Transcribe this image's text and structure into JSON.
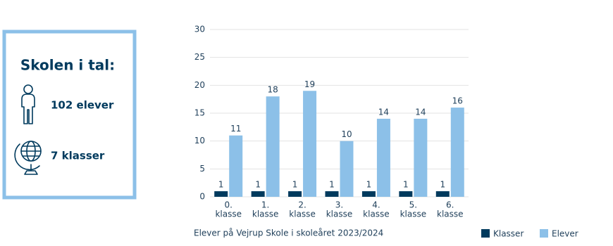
{
  "info_box": {
    "title": "Skolen i tal:",
    "items": [
      "102 elever",
      "7 klasser"
    ]
  },
  "chart_data": {
    "type": "bar",
    "caption": "Elever på Vejrup Skole i skoleåret 2023/2024",
    "categories": [
      [
        "0.",
        "klasse"
      ],
      [
        "1.",
        "klasse"
      ],
      [
        "2.",
        "klasse"
      ],
      [
        "3.",
        "klasse"
      ],
      [
        "4.",
        "klasse"
      ],
      [
        "5.",
        "klasse"
      ],
      [
        "6.",
        "klasse"
      ]
    ],
    "series": [
      {
        "name": "Klasser",
        "color": "#003a5d",
        "values": [
          1,
          1,
          1,
          1,
          1,
          1,
          1
        ]
      },
      {
        "name": "Elever",
        "color": "#8cc0e8",
        "values": [
          11,
          18,
          19,
          10,
          14,
          14,
          16
        ]
      }
    ],
    "ylim": [
      0,
      30
    ],
    "yticks": [
      0,
      5,
      10,
      15,
      20,
      25,
      30
    ],
    "grid": true,
    "legend": "bottom-right"
  }
}
